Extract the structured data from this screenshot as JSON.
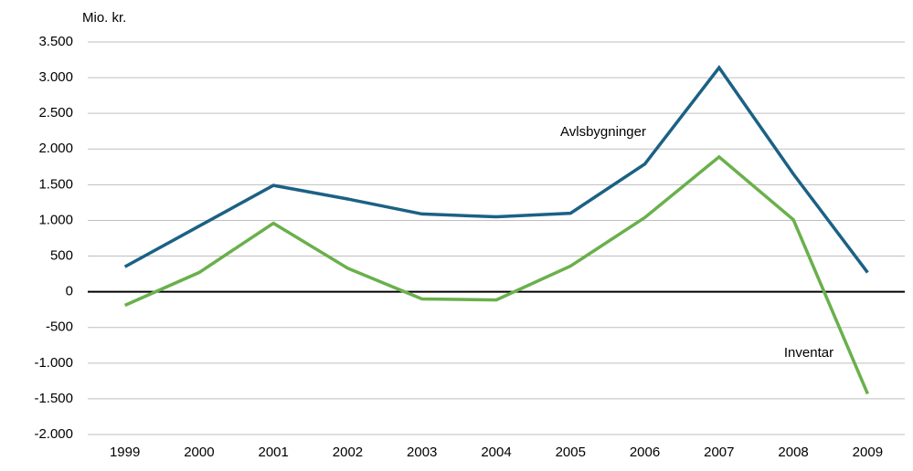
{
  "chart_data": {
    "type": "line",
    "y_axis_label": "Mio. kr.",
    "categories": [
      "1999",
      "2000",
      "2001",
      "2002",
      "2003",
      "2004",
      "2005",
      "2006",
      "2007",
      "2008",
      "2009"
    ],
    "series": [
      {
        "name": "Avlsbygninger",
        "color": "#1b6184",
        "values": [
          350,
          920,
          1490,
          1300,
          1090,
          1050,
          1100,
          1790,
          3140,
          1650,
          270
        ]
      },
      {
        "name": "Inventar",
        "color": "#6ab04c",
        "values": [
          -190,
          270,
          960,
          330,
          -100,
          -115,
          360,
          1040,
          1890,
          1010,
          -1430
        ]
      }
    ],
    "ylim": [
      -2000,
      3500
    ],
    "yticks": [
      {
        "value": -2000,
        "label": "-2.000"
      },
      {
        "value": -1500,
        "label": "-1.500"
      },
      {
        "value": -1000,
        "label": "-1.000"
      },
      -500,
      0,
      500,
      {
        "value": 1000,
        "label": "1.000"
      },
      {
        "value": 1500,
        "label": "1.500"
      },
      {
        "value": 2000,
        "label": "2.000"
      },
      {
        "value": 2500,
        "label": "2.500"
      },
      {
        "value": 3000,
        "label": "3.000"
      },
      {
        "value": 3500,
        "label": "3.500"
      }
    ],
    "grid": true
  }
}
